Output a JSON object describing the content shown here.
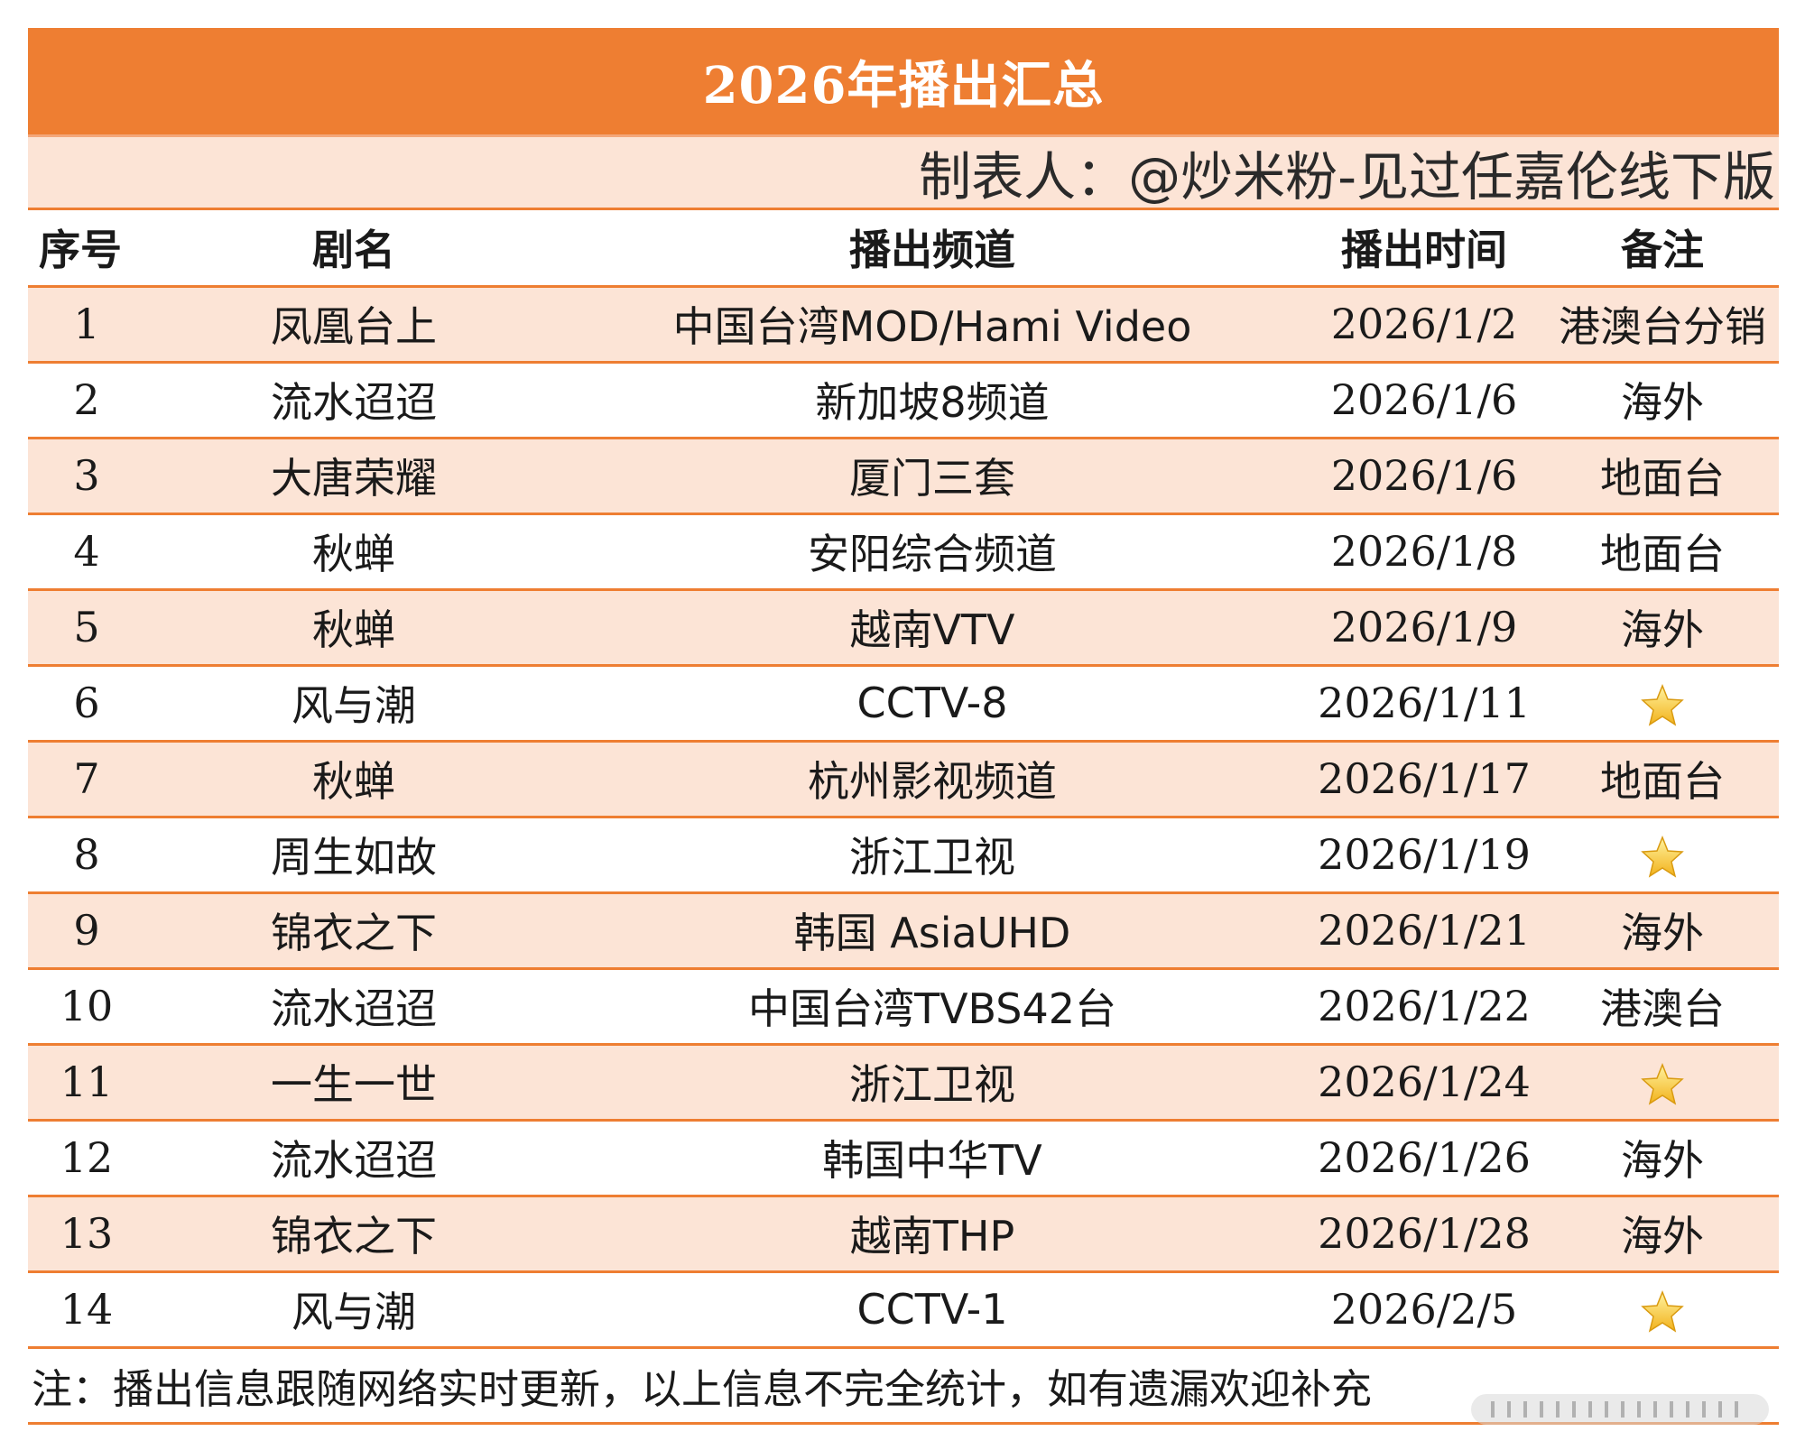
{
  "title": "2026年播出汇总",
  "maker": "制表人：@炒米粉-见过任嘉伦线下版",
  "columns": [
    "序号",
    "剧名",
    "播出频道",
    "播出时间",
    "备注"
  ],
  "rows": [
    {
      "no": "1",
      "drama": "凤凰台上",
      "channel": "中国台湾MOD/Hami Video",
      "date": "2026/1/2",
      "note": "港澳台分销",
      "star": false
    },
    {
      "no": "2",
      "drama": "流水迢迢",
      "channel": "新加坡8频道",
      "date": "2026/1/6",
      "note": "海外",
      "star": false
    },
    {
      "no": "3",
      "drama": "大唐荣耀",
      "channel": "厦门三套",
      "date": "2026/1/6",
      "note": "地面台",
      "star": false
    },
    {
      "no": "4",
      "drama": "秋蝉",
      "channel": "安阳综合频道",
      "date": "2026/1/8",
      "note": "地面台",
      "star": false
    },
    {
      "no": "5",
      "drama": "秋蝉",
      "channel": "越南VTV",
      "date": "2026/1/9",
      "note": "海外",
      "star": false
    },
    {
      "no": "6",
      "drama": "风与潮",
      "channel": "CCTV-8",
      "date": "2026/1/11",
      "note": "",
      "star": true
    },
    {
      "no": "7",
      "drama": "秋蝉",
      "channel": "杭州影视频道",
      "date": "2026/1/17",
      "note": "地面台",
      "star": false
    },
    {
      "no": "8",
      "drama": "周生如故",
      "channel": "浙江卫视",
      "date": "2026/1/19",
      "note": "",
      "star": true
    },
    {
      "no": "9",
      "drama": "锦衣之下",
      "channel": "韩国 AsiaUHD",
      "date": "2026/1/21",
      "note": "海外",
      "star": false
    },
    {
      "no": "10",
      "drama": "流水迢迢",
      "channel": "中国台湾TVBS42台",
      "date": "2026/1/22",
      "note": "港澳台",
      "star": false
    },
    {
      "no": "11",
      "drama": "一生一世",
      "channel": "浙江卫视",
      "date": "2026/1/24",
      "note": "",
      "star": true
    },
    {
      "no": "12",
      "drama": "流水迢迢",
      "channel": "韩国中华TV",
      "date": "2026/1/26",
      "note": "海外",
      "star": false
    },
    {
      "no": "13",
      "drama": "锦衣之下",
      "channel": "越南THP",
      "date": "2026/1/28",
      "note": "海外",
      "star": false
    },
    {
      "no": "14",
      "drama": "风与潮",
      "channel": "CCTV-1",
      "date": "2026/2/5",
      "note": "",
      "star": true
    }
  ],
  "footer": "注：播出信息跟随网络实时更新，以上信息不完全统计，如有遗漏欢迎补充",
  "colors": {
    "accent": "#ee7e32",
    "row_tint": "#fce4d6",
    "star": "#f5c518"
  },
  "icons": {
    "star": "star-icon"
  }
}
